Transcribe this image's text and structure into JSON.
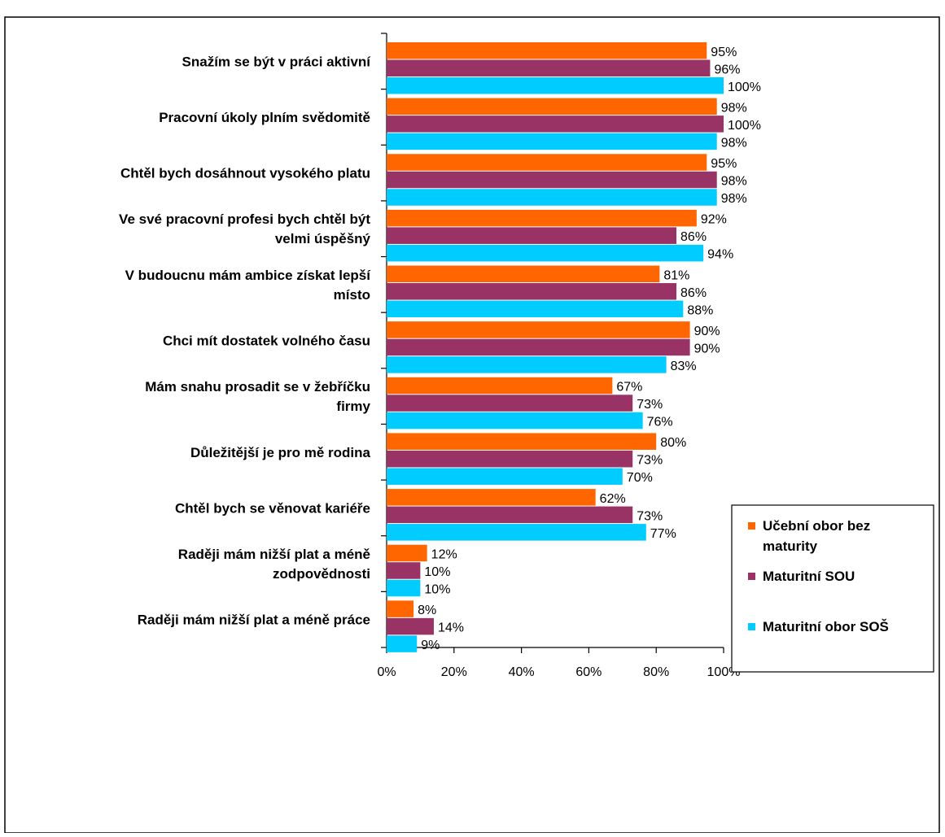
{
  "chart_data": {
    "type": "bar",
    "orientation": "horizontal",
    "title": "",
    "xlabel": "",
    "ylabel": "",
    "xlim": [
      0,
      100
    ],
    "x_ticks": [
      "0%",
      "20%",
      "40%",
      "60%",
      "80%",
      "100%"
    ],
    "grid": false,
    "legend_position": "right",
    "value_suffix": "%",
    "categories": [
      [
        "Snažím se být v práci aktivní"
      ],
      [
        "Pracovní úkoly plním svědomitě"
      ],
      [
        "Chtěl bych dosáhnout vysokého platu"
      ],
      [
        "Ve své pracovní profesi bych chtěl být",
        "velmi úspěšný"
      ],
      [
        "V budoucnu mám ambice získat lepší",
        "místo"
      ],
      [
        "Chci mít dostatek volného času"
      ],
      [
        "Mám snahu prosadit se v žebříčku",
        "firmy"
      ],
      [
        "Důležitější je pro mě rodina"
      ],
      [
        "Chtěl bych se věnovat kariéře"
      ],
      [
        "Raději mám nižší plat a méně",
        "zodpovědnosti"
      ],
      [
        "Raději mám nižší plat a méně práce"
      ]
    ],
    "series": [
      {
        "name": [
          "Učební obor bez",
          "maturity"
        ],
        "color": "#ff6600",
        "values": [
          95,
          98,
          95,
          92,
          81,
          90,
          67,
          80,
          62,
          12,
          8
        ]
      },
      {
        "name": [
          "Maturitní SOU"
        ],
        "color": "#993366",
        "values": [
          96,
          100,
          98,
          86,
          86,
          90,
          73,
          73,
          73,
          10,
          14
        ]
      },
      {
        "name": [
          "Maturitní obor SOŠ"
        ],
        "color": "#00ccff",
        "values": [
          100,
          98,
          98,
          94,
          88,
          83,
          76,
          70,
          77,
          10,
          9
        ]
      }
    ]
  }
}
